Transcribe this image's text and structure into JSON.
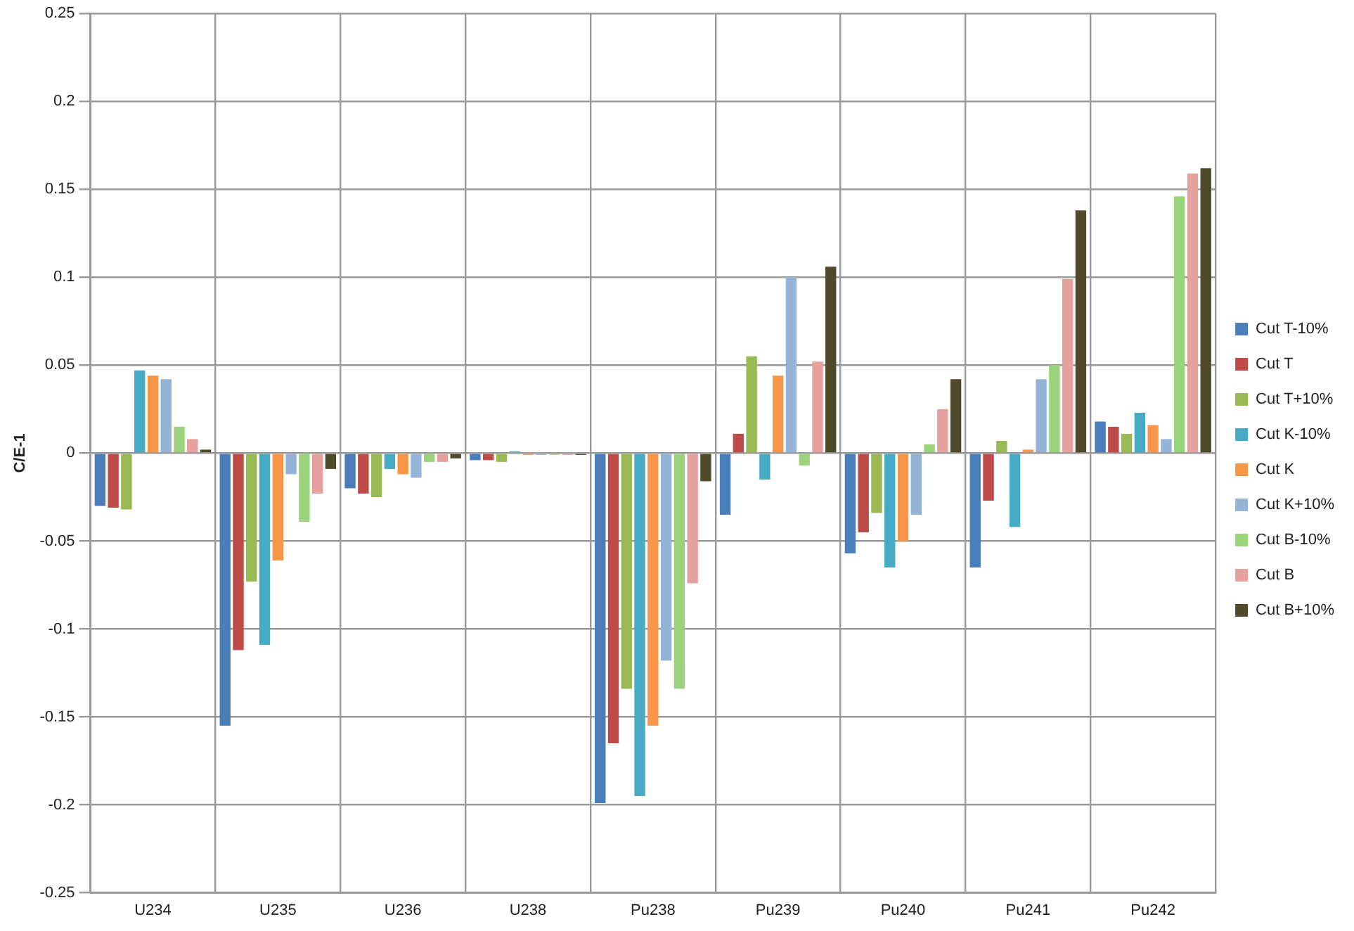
{
  "chart_data": {
    "type": "bar",
    "ylabel": "C/E-1",
    "categories": [
      "U234",
      "U235",
      "U236",
      "U238",
      "Pu238",
      "Pu239",
      "Pu240",
      "Pu241",
      "Pu242"
    ],
    "ylim": [
      -0.25,
      0.25
    ],
    "yticks": [
      -0.25,
      -0.2,
      -0.15,
      -0.1,
      -0.05,
      0,
      0.05,
      0.1,
      0.15,
      0.2,
      0.25
    ],
    "grid": true,
    "legend": "right",
    "series": [
      {
        "name": "Cut T-10%",
        "color": "#4a7ebb",
        "values": [
          -0.03,
          -0.155,
          -0.02,
          -0.004,
          -0.199,
          -0.035,
          -0.057,
          -0.065,
          0.018
        ]
      },
      {
        "name": "Cut T",
        "color": "#be4b48",
        "values": [
          -0.031,
          -0.112,
          -0.023,
          -0.004,
          -0.165,
          0.011,
          -0.045,
          -0.027,
          0.015
        ]
      },
      {
        "name": "Cut T+10%",
        "color": "#98b954",
        "values": [
          -0.032,
          -0.073,
          -0.025,
          -0.005,
          -0.134,
          0.055,
          -0.034,
          0.007,
          0.011
        ]
      },
      {
        "name": "Cut K-10%",
        "color": "#46aac5",
        "values": [
          0.047,
          -0.109,
          -0.009,
          0.001,
          -0.195,
          -0.015,
          -0.065,
          -0.042,
          0.023
        ]
      },
      {
        "name": "Cut K",
        "color": "#f79646",
        "values": [
          0.044,
          -0.061,
          -0.012,
          -0.001,
          -0.155,
          0.044,
          -0.05,
          0.002,
          0.016
        ]
      },
      {
        "name": "Cut K+10%",
        "color": "#95b3d7",
        "values": [
          0.042,
          -0.012,
          -0.014,
          -0.001,
          -0.118,
          0.1,
          -0.035,
          0.042,
          0.008
        ]
      },
      {
        "name": "Cut B-10%",
        "color": "#9bd37a",
        "values": [
          0.015,
          -0.039,
          -0.005,
          -0.001,
          -0.134,
          -0.007,
          0.005,
          0.05,
          0.146
        ]
      },
      {
        "name": "Cut B",
        "color": "#e6a09e",
        "values": [
          0.008,
          -0.023,
          -0.005,
          -0.001,
          -0.074,
          0.052,
          0.025,
          0.099,
          0.159
        ]
      },
      {
        "name": "Cut B+10%",
        "color": "#4f4a2c",
        "values": [
          0.002,
          -0.009,
          -0.003,
          -0.001,
          -0.016,
          0.106,
          0.042,
          0.138,
          0.162
        ]
      }
    ]
  }
}
